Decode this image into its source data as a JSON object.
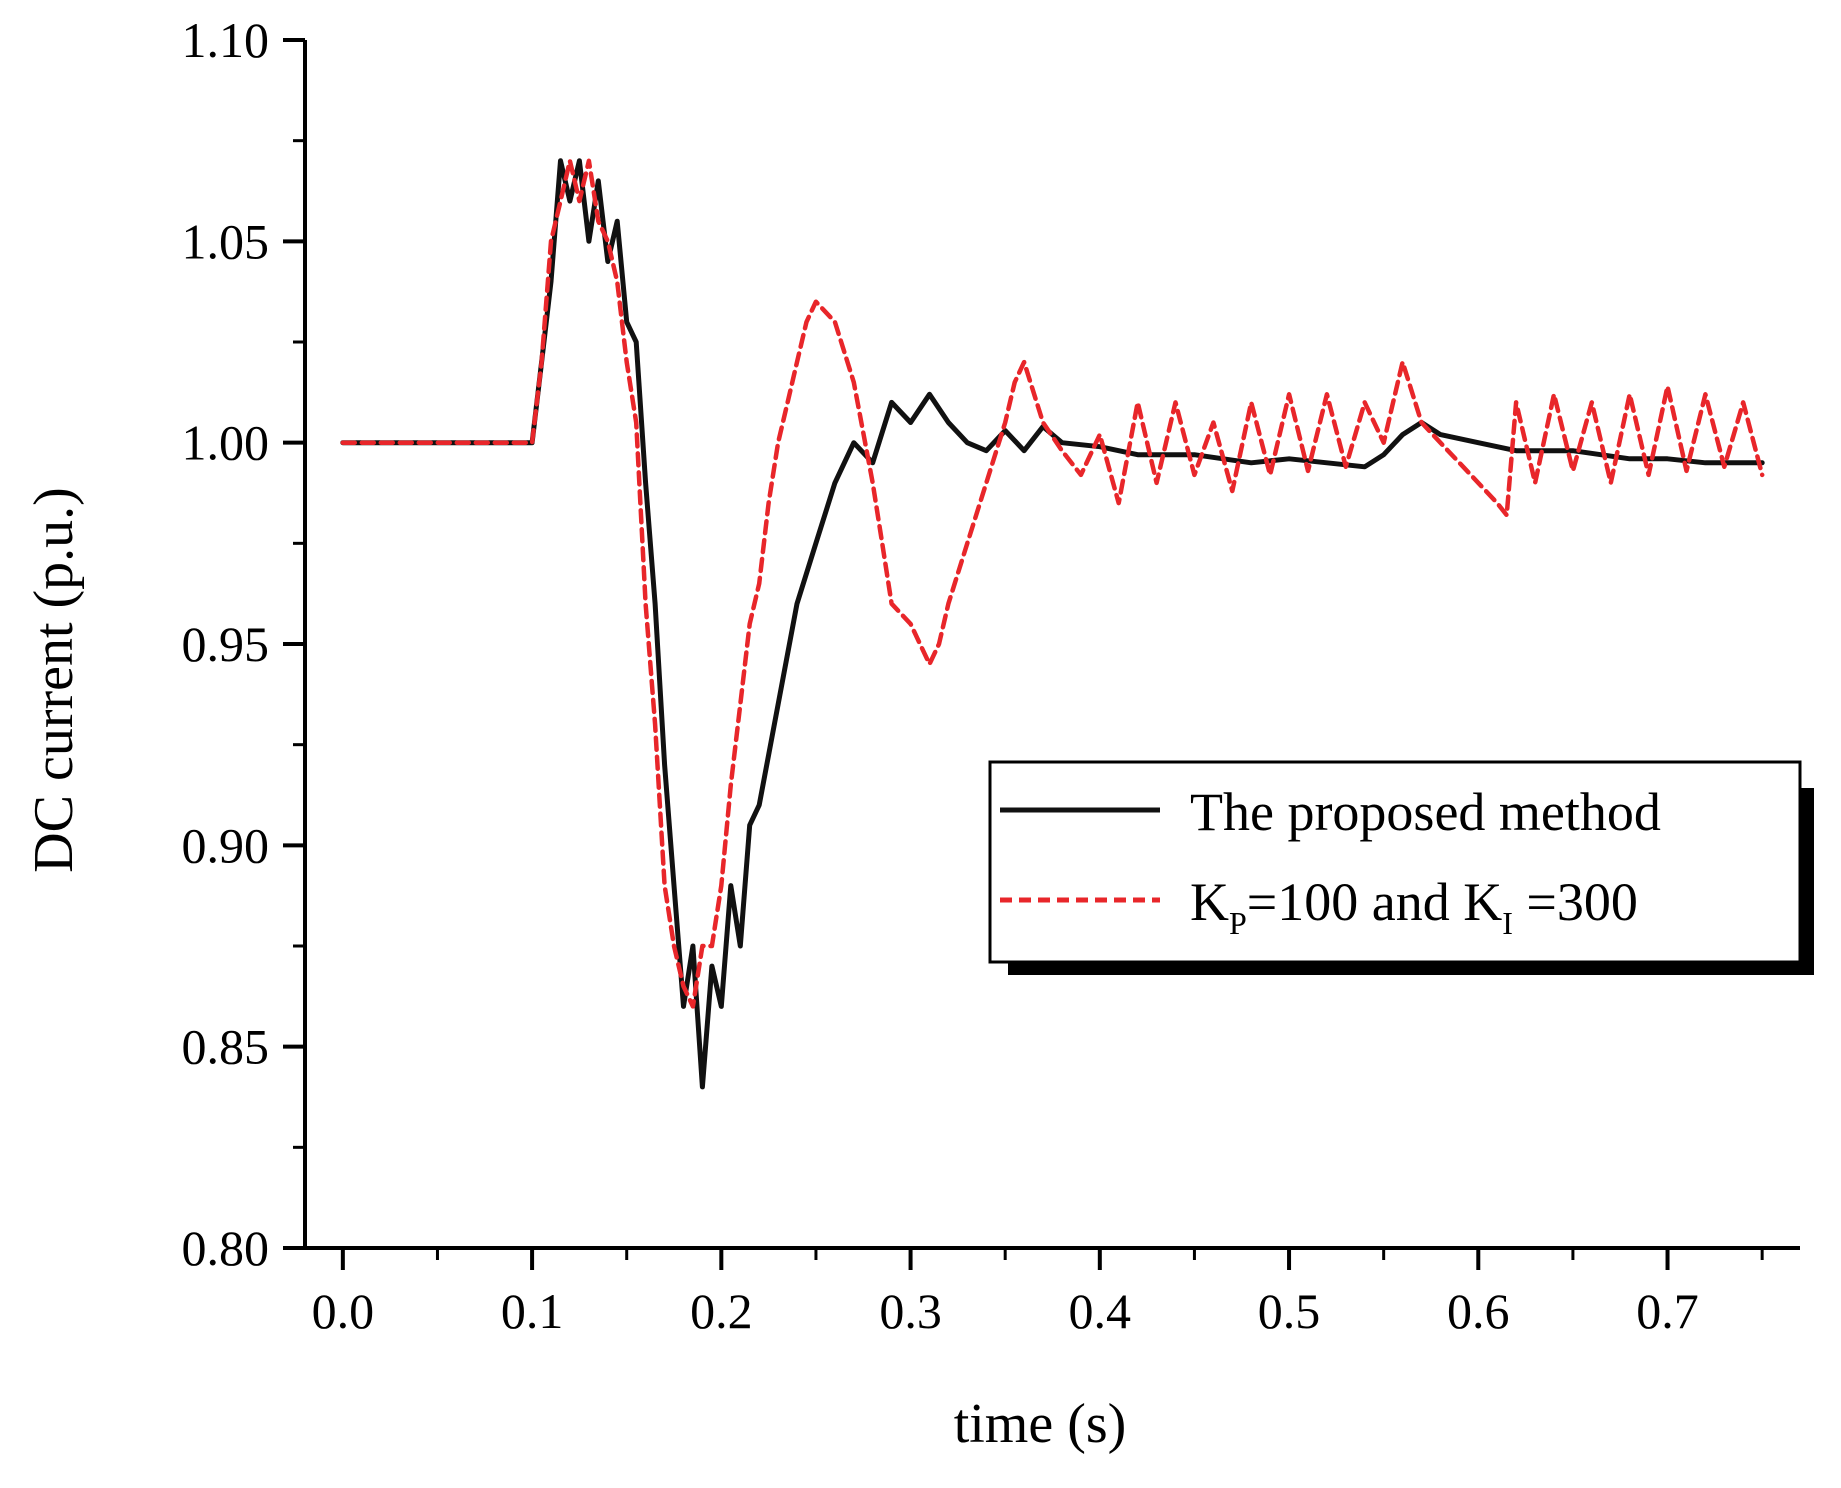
{
  "chart_data": {
    "type": "line",
    "title": "",
    "xlabel": "time (s)",
    "ylabel": "DC current (p.u.)",
    "xlim": [
      -0.02,
      0.77
    ],
    "ylim": [
      0.8,
      1.1
    ],
    "x_ticks": [
      0.0,
      0.1,
      0.2,
      0.3,
      0.4,
      0.5,
      0.6,
      0.7
    ],
    "x_tick_labels": [
      "0.0",
      "0.1",
      "0.2",
      "0.3",
      "0.4",
      "0.5",
      "0.6",
      "0.7"
    ],
    "y_ticks": [
      0.8,
      0.85,
      0.9,
      0.95,
      1.0,
      1.05,
      1.1
    ],
    "y_tick_labels": [
      "0.80",
      "0.85",
      "0.90",
      "0.95",
      "1.00",
      "1.05",
      "1.10"
    ],
    "grid": false,
    "legend_position": "center-right",
    "series": [
      {
        "name": "The proposed method",
        "color": "#111111",
        "style": "solid",
        "x": [
          0.0,
          0.02,
          0.04,
          0.06,
          0.08,
          0.1,
          0.105,
          0.11,
          0.115,
          0.12,
          0.125,
          0.13,
          0.135,
          0.14,
          0.145,
          0.15,
          0.155,
          0.16,
          0.165,
          0.17,
          0.175,
          0.18,
          0.185,
          0.19,
          0.195,
          0.2,
          0.205,
          0.21,
          0.215,
          0.22,
          0.23,
          0.24,
          0.25,
          0.26,
          0.27,
          0.28,
          0.29,
          0.3,
          0.31,
          0.32,
          0.33,
          0.34,
          0.35,
          0.36,
          0.37,
          0.38,
          0.4,
          0.42,
          0.45,
          0.48,
          0.5,
          0.52,
          0.54,
          0.55,
          0.56,
          0.57,
          0.58,
          0.6,
          0.62,
          0.65,
          0.68,
          0.7,
          0.72,
          0.75
        ],
        "values": [
          1.0,
          1.0,
          1.0,
          1.0,
          1.0,
          1.0,
          1.02,
          1.04,
          1.07,
          1.06,
          1.07,
          1.05,
          1.065,
          1.045,
          1.055,
          1.03,
          1.025,
          0.99,
          0.96,
          0.92,
          0.89,
          0.86,
          0.875,
          0.84,
          0.87,
          0.86,
          0.89,
          0.875,
          0.905,
          0.91,
          0.935,
          0.96,
          0.975,
          0.99,
          1.0,
          0.995,
          1.01,
          1.005,
          1.012,
          1.005,
          1.0,
          0.998,
          1.003,
          0.998,
          1.004,
          1.0,
          0.999,
          0.997,
          0.997,
          0.995,
          0.996,
          0.995,
          0.994,
          0.997,
          1.002,
          1.005,
          1.002,
          1.0,
          0.998,
          0.998,
          0.996,
          0.996,
          0.995,
          0.995
        ]
      },
      {
        "name": "K_P=100 and K_I =300",
        "color": "#e8262a",
        "style": "dashed",
        "x": [
          0.0,
          0.02,
          0.04,
          0.06,
          0.08,
          0.1,
          0.105,
          0.11,
          0.115,
          0.12,
          0.125,
          0.13,
          0.135,
          0.14,
          0.145,
          0.15,
          0.155,
          0.16,
          0.165,
          0.17,
          0.175,
          0.18,
          0.185,
          0.19,
          0.195,
          0.2,
          0.205,
          0.21,
          0.215,
          0.22,
          0.225,
          0.23,
          0.235,
          0.24,
          0.245,
          0.25,
          0.26,
          0.27,
          0.28,
          0.285,
          0.29,
          0.3,
          0.305,
          0.31,
          0.315,
          0.32,
          0.33,
          0.34,
          0.35,
          0.355,
          0.36,
          0.37,
          0.38,
          0.39,
          0.4,
          0.41,
          0.42,
          0.43,
          0.44,
          0.45,
          0.46,
          0.47,
          0.48,
          0.49,
          0.5,
          0.51,
          0.52,
          0.53,
          0.54,
          0.55,
          0.555,
          0.56,
          0.57,
          0.58,
          0.59,
          0.6,
          0.61,
          0.615,
          0.62,
          0.63,
          0.64,
          0.65,
          0.66,
          0.67,
          0.68,
          0.69,
          0.7,
          0.71,
          0.72,
          0.73,
          0.74,
          0.75
        ],
        "values": [
          1.0,
          1.0,
          1.0,
          1.0,
          1.0,
          1.0,
          1.02,
          1.05,
          1.06,
          1.07,
          1.06,
          1.07,
          1.055,
          1.05,
          1.04,
          1.02,
          1.005,
          0.96,
          0.93,
          0.89,
          0.875,
          0.865,
          0.86,
          0.875,
          0.875,
          0.89,
          0.915,
          0.935,
          0.955,
          0.965,
          0.985,
          1.0,
          1.01,
          1.02,
          1.03,
          1.035,
          1.03,
          1.015,
          0.99,
          0.975,
          0.96,
          0.955,
          0.95,
          0.945,
          0.95,
          0.96,
          0.975,
          0.99,
          1.005,
          1.015,
          1.02,
          1.005,
          0.998,
          0.992,
          1.002,
          0.985,
          1.01,
          0.99,
          1.01,
          0.992,
          1.005,
          0.988,
          1.01,
          0.992,
          1.012,
          0.993,
          1.012,
          0.994,
          1.01,
          1.0,
          1.01,
          1.02,
          1.005,
          1.0,
          0.995,
          0.99,
          0.985,
          0.982,
          1.01,
          0.99,
          1.012,
          0.993,
          1.01,
          0.99,
          1.012,
          0.992,
          1.014,
          0.993,
          1.012,
          0.994,
          1.01,
          0.992
        ]
      }
    ],
    "legend": [
      {
        "label_main": "K",
        "label_sub": "P",
        "label_rest": "=100 and K",
        "label_sub2": "I",
        "label_end": " =300"
      }
    ]
  },
  "legend_labels": {
    "proposed": "The proposed method",
    "kp_k": "K",
    "kp_sub": "P",
    "kp_mid": "=100 and K",
    "ki_sub": "I",
    "kp_end": " =300"
  }
}
